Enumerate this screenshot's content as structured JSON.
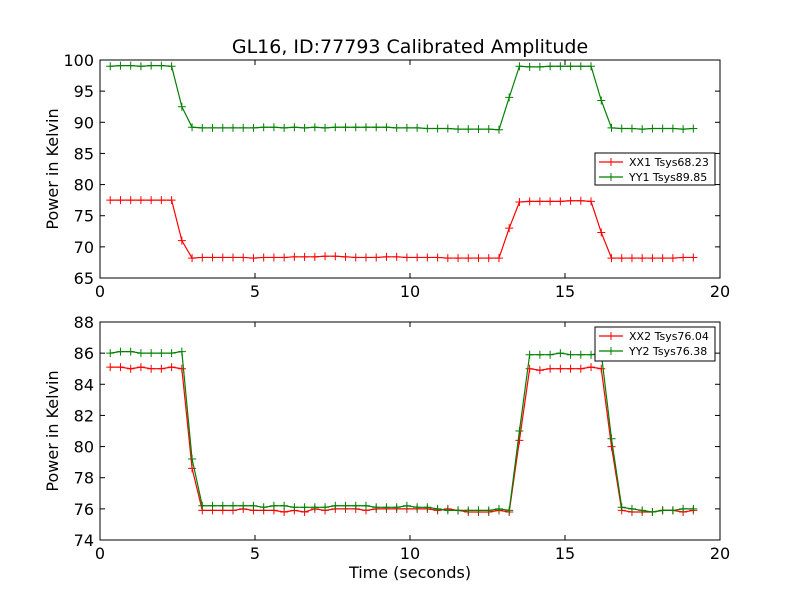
{
  "figure": {
    "title": "GL16, ID:77793 Calibrated Amplitude"
  },
  "chart_data": [
    {
      "type": "line",
      "title": "GL16, ID:77793 Calibrated Amplitude",
      "xlabel": "",
      "ylabel": "Power in Kelvin",
      "xlim": [
        0,
        20
      ],
      "ylim": [
        65,
        100
      ],
      "xticks": [
        0,
        5,
        10,
        15,
        20
      ],
      "yticks": [
        65,
        70,
        75,
        80,
        85,
        90,
        95,
        100
      ],
      "legend_position": "center-right",
      "grid": false,
      "x": [
        0.33,
        0.66,
        0.99,
        1.32,
        1.65,
        1.98,
        2.31,
        2.64,
        2.97,
        3.3,
        3.63,
        3.96,
        4.29,
        4.62,
        4.95,
        5.28,
        5.61,
        5.94,
        6.27,
        6.6,
        6.93,
        7.26,
        7.59,
        7.92,
        8.25,
        8.58,
        8.91,
        9.24,
        9.57,
        9.9,
        10.23,
        10.56,
        10.89,
        11.22,
        11.55,
        11.88,
        12.21,
        12.54,
        12.87,
        13.2,
        13.53,
        13.86,
        14.19,
        14.52,
        14.85,
        15.18,
        15.51,
        15.84,
        16.17,
        16.5,
        16.83,
        17.16,
        17.49,
        17.82,
        18.15,
        18.48,
        18.81,
        19.14
      ],
      "series": [
        {
          "name": "XX1 Tsys68.23",
          "color": "#ff0000",
          "values": [
            77.5,
            77.5,
            77.5,
            77.5,
            77.5,
            77.5,
            77.5,
            71.0,
            68.2,
            68.3,
            68.3,
            68.3,
            68.3,
            68.3,
            68.2,
            68.3,
            68.3,
            68.3,
            68.4,
            68.4,
            68.4,
            68.5,
            68.5,
            68.4,
            68.3,
            68.3,
            68.3,
            68.4,
            68.4,
            68.3,
            68.3,
            68.3,
            68.3,
            68.2,
            68.2,
            68.2,
            68.2,
            68.2,
            68.2,
            73.0,
            77.2,
            77.3,
            77.3,
            77.3,
            77.3,
            77.4,
            77.4,
            77.3,
            72.3,
            68.2,
            68.2,
            68.2,
            68.2,
            68.2,
            68.2,
            68.2,
            68.3,
            68.3
          ]
        },
        {
          "name": "YY1 Tsys89.85",
          "color": "#008000",
          "values": [
            99.0,
            99.1,
            99.1,
            99.0,
            99.1,
            99.1,
            99.0,
            92.5,
            89.2,
            89.1,
            89.1,
            89.1,
            89.1,
            89.1,
            89.1,
            89.2,
            89.2,
            89.1,
            89.2,
            89.1,
            89.2,
            89.1,
            89.2,
            89.2,
            89.2,
            89.2,
            89.2,
            89.2,
            89.1,
            89.1,
            89.1,
            89.0,
            89.0,
            89.0,
            88.9,
            88.9,
            88.9,
            88.9,
            88.8,
            94.0,
            99.0,
            98.9,
            98.9,
            99.0,
            99.0,
            99.0,
            99.0,
            99.0,
            93.5,
            89.1,
            89.0,
            89.0,
            88.9,
            89.0,
            89.0,
            89.0,
            88.9,
            89.0
          ]
        }
      ]
    },
    {
      "type": "line",
      "title": "",
      "xlabel": "Time (seconds)",
      "ylabel": "Power in Kelvin",
      "xlim": [
        0,
        20
      ],
      "ylim": [
        74,
        88
      ],
      "xticks": [
        0,
        5,
        10,
        15,
        20
      ],
      "yticks": [
        74,
        76,
        78,
        80,
        82,
        84,
        86,
        88
      ],
      "legend_position": "top-right",
      "grid": false,
      "x": [
        0.33,
        0.66,
        0.99,
        1.32,
        1.65,
        1.98,
        2.31,
        2.64,
        2.97,
        3.3,
        3.63,
        3.96,
        4.29,
        4.62,
        4.95,
        5.28,
        5.61,
        5.94,
        6.27,
        6.6,
        6.93,
        7.26,
        7.59,
        7.92,
        8.25,
        8.58,
        8.91,
        9.24,
        9.57,
        9.9,
        10.23,
        10.56,
        10.89,
        11.22,
        11.55,
        11.88,
        12.21,
        12.54,
        12.87,
        13.2,
        13.53,
        13.86,
        14.19,
        14.52,
        14.85,
        15.18,
        15.51,
        15.84,
        16.17,
        16.5,
        16.83,
        17.16,
        17.49,
        17.82,
        18.15,
        18.48,
        18.81,
        19.14
      ],
      "series": [
        {
          "name": "XX2 Tsys76.04",
          "color": "#ff0000",
          "values": [
            85.1,
            85.1,
            85.0,
            85.1,
            85.0,
            85.0,
            85.1,
            85.0,
            78.6,
            75.9,
            75.9,
            75.9,
            75.9,
            76.0,
            75.9,
            75.9,
            75.9,
            75.8,
            75.9,
            75.8,
            76.0,
            75.9,
            76.0,
            76.0,
            76.0,
            75.9,
            76.0,
            76.0,
            76.0,
            76.0,
            76.0,
            76.0,
            75.9,
            76.0,
            75.9,
            75.8,
            75.8,
            75.8,
            75.9,
            75.8,
            80.4,
            85.0,
            84.9,
            85.0,
            85.0,
            85.0,
            85.0,
            85.1,
            85.0,
            80.0,
            75.9,
            75.8,
            75.8,
            75.8,
            75.9,
            75.9,
            75.8,
            75.9
          ]
        },
        {
          "name": "YY2 Tsys76.38",
          "color": "#008000",
          "values": [
            86.0,
            86.1,
            86.1,
            86.0,
            86.0,
            86.0,
            86.0,
            86.1,
            79.2,
            76.2,
            76.2,
            76.2,
            76.2,
            76.2,
            76.2,
            76.1,
            76.2,
            76.2,
            76.1,
            76.1,
            76.1,
            76.1,
            76.2,
            76.2,
            76.2,
            76.2,
            76.1,
            76.1,
            76.1,
            76.2,
            76.1,
            76.1,
            76.0,
            75.9,
            75.9,
            75.9,
            75.9,
            75.9,
            76.0,
            75.9,
            81.0,
            85.9,
            85.9,
            85.9,
            86.0,
            85.9,
            85.9,
            85.9,
            86.0,
            80.5,
            76.1,
            76.0,
            75.9,
            75.8,
            75.9,
            75.9,
            76.0,
            76.0
          ]
        }
      ]
    }
  ]
}
